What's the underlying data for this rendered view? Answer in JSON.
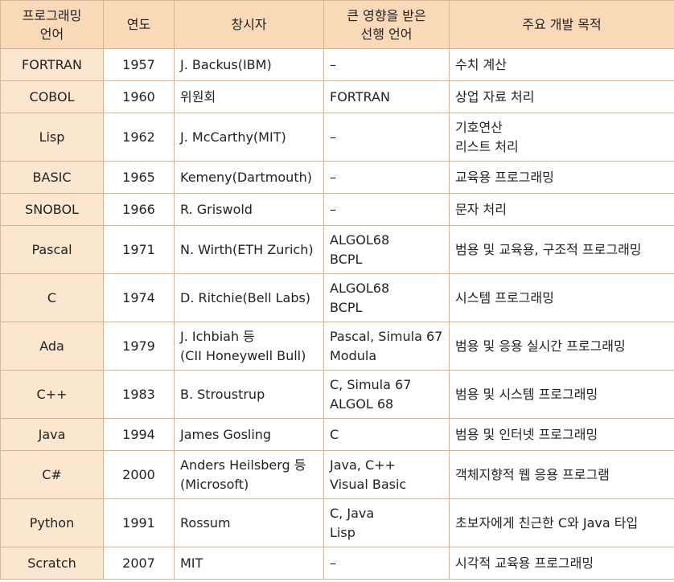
{
  "headers": [
    [
      "프로그래밍",
      "언어"
    ],
    [
      "연도"
    ],
    [
      "창시자"
    ],
    [
      "큰 영향을 받은",
      "선행 언어"
    ],
    [
      "주요 개발 목적"
    ]
  ],
  "rows": [
    {
      "language": "FORTRAN",
      "year": "1957",
      "creator": [
        "J. Backus(IBM)"
      ],
      "influence": [
        "–"
      ],
      "purpose": [
        "수치 계산"
      ]
    },
    {
      "language": "COBOL",
      "year": "1960",
      "creator": [
        "위원회"
      ],
      "influence": [
        "FORTRAN"
      ],
      "purpose": [
        "상업 자료 처리"
      ]
    },
    {
      "language": "Lisp",
      "year": "1962",
      "creator": [
        "J. McCarthy(MIT)"
      ],
      "influence": [
        "–"
      ],
      "purpose": [
        "기호연산",
        "리스트 처리"
      ]
    },
    {
      "language": "BASIC",
      "year": "1965",
      "creator": [
        "Kemeny(Dartmouth)"
      ],
      "influence": [
        "–"
      ],
      "purpose": [
        "교육용 프로그래밍"
      ]
    },
    {
      "language": "SNOBOL",
      "year": "1966",
      "creator": [
        "R. Griswold"
      ],
      "influence": [
        "–"
      ],
      "purpose": [
        "문자 처리"
      ]
    },
    {
      "language": "Pascal",
      "year": "1971",
      "creator": [
        "N. Wirth(ETH Zurich)"
      ],
      "influence": [
        "ALGOL68",
        "BCPL"
      ],
      "purpose": [
        "범용 및 교육용, 구조적 프로그래밍"
      ]
    },
    {
      "language": "C",
      "year": "1974",
      "creator": [
        "D. Ritchie(Bell Labs)"
      ],
      "influence": [
        "ALGOL68",
        "BCPL"
      ],
      "purpose": [
        "시스템 프로그래밍"
      ]
    },
    {
      "language": "Ada",
      "year": "1979",
      "creator": [
        "J. Ichbiah 등",
        "(CII Honeywell Bull)"
      ],
      "influence": [
        "Pascal, Simula 67",
        "Modula"
      ],
      "purpose": [
        "범용 및 응용 실시간 프로그래밍"
      ]
    },
    {
      "language": "C++",
      "year": "1983",
      "creator": [
        "B. Stroustrup"
      ],
      "influence": [
        "C, Simula 67",
        "ALGOL 68"
      ],
      "purpose": [
        "범용 및 시스템 프로그래밍"
      ]
    },
    {
      "language": "Java",
      "year": "1994",
      "creator": [
        "James Gosling"
      ],
      "influence": [
        "C"
      ],
      "purpose": [
        "범용 및 인터넷 프로그래밍"
      ]
    },
    {
      "language": "C#",
      "year": "2000",
      "creator": [
        "Anders Heilsberg 등",
        "(Microsoft)"
      ],
      "influence": [
        "Java, C++",
        "Visual Basic"
      ],
      "purpose": [
        "객체지향적 웹 응용 프로그램"
      ]
    },
    {
      "language": "Python",
      "year": "1991",
      "creator": [
        "Rossum"
      ],
      "influence": [
        "C, Java",
        "Lisp"
      ],
      "purpose": [
        "초보자에게 친근한 C와 Java 타입"
      ]
    },
    {
      "language": "Scratch",
      "year": "2007",
      "creator": [
        "MIT"
      ],
      "influence": [
        "–"
      ],
      "purpose": [
        "시각적 교육용 프로그래밍"
      ]
    }
  ],
  "colors": {
    "header_bg": "#fad9b8",
    "first_column_bg": "#fbe6d0",
    "border": "#d4b496"
  }
}
